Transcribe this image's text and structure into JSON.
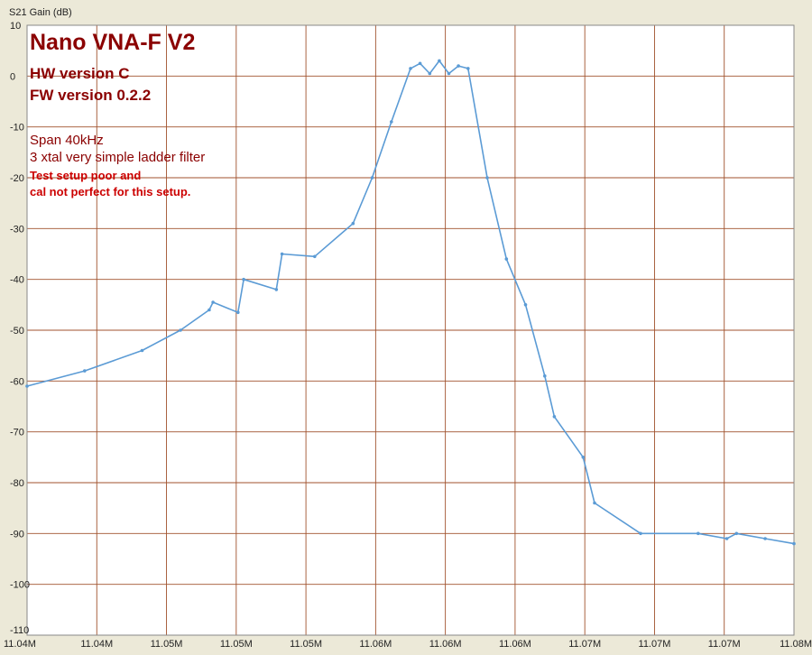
{
  "chart_data": {
    "type": "line",
    "title": "Nano VNA-F V2",
    "ylabel": "S21 Gain (dB)",
    "xlabel": "",
    "ylim": [
      -110,
      10
    ],
    "yticks": [
      10,
      0,
      -10,
      -20,
      -30,
      -40,
      -50,
      -60,
      -70,
      -80,
      -90,
      -100,
      -110
    ],
    "xtick_labels": [
      "11.04M",
      "11.04M",
      "11.05M",
      "11.05M",
      "11.05M",
      "11.06M",
      "11.06M",
      "11.06M",
      "11.07M",
      "11.07M",
      "11.07M",
      "11.08M"
    ],
    "xlim_hz": [
      11040000,
      11080000
    ],
    "grid": true,
    "annotations": {
      "hw": "HW version C",
      "fw": "FW version 0.2.2",
      "span": "Span 40kHz",
      "filter": "3 xtal very simple ladder filter",
      "note1": "Test setup poor and",
      "note2": "cal not perfect for this setup."
    },
    "series": [
      {
        "color": "#5b9bd5",
        "x": [
          11040000,
          11043000,
          11046000,
          11048000,
          11049500,
          11049700,
          11051000,
          11051300,
          11053000,
          11053300,
          11055000,
          11057000,
          11058000,
          11059000,
          11060000,
          11060500,
          11061000,
          11061500,
          11062000,
          11062500,
          11063000,
          11064000,
          11065000,
          11066000,
          11067000,
          11067500,
          11069000,
          11069600,
          11072000,
          11075000,
          11076500,
          11077000,
          11078500,
          11080000
        ],
        "y": [
          -61,
          -58,
          -54,
          -50,
          -46,
          -44.5,
          -46.5,
          -40,
          -42,
          -35,
          -35.5,
          -29,
          -20,
          -9,
          1.5,
          2.5,
          0.5,
          3,
          0.5,
          2,
          1.5,
          -20,
          -36,
          -45,
          -59,
          -67,
          -75,
          -84,
          -90,
          -90,
          -91,
          -90,
          -91,
          -92
        ]
      }
    ]
  }
}
